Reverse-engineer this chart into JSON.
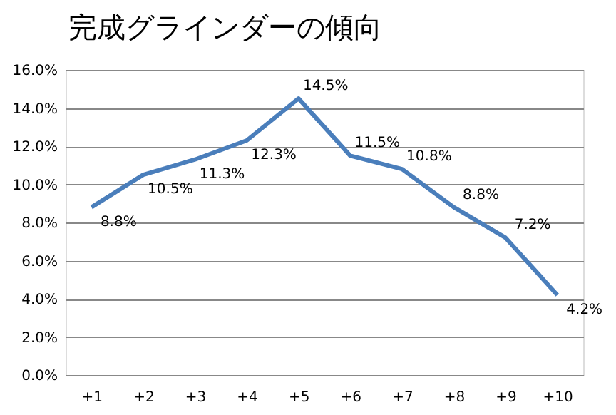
{
  "chart_data": {
    "type": "line",
    "title": "完成グラインダーの傾向",
    "categories": [
      "+1",
      "+2",
      "+3",
      "+4",
      "+5",
      "+6",
      "+7",
      "+8",
      "+9",
      "+10"
    ],
    "series": [
      {
        "color": "#4a7ebb",
        "values": [
          8.8,
          10.5,
          11.3,
          12.3,
          14.5,
          11.5,
          10.8,
          8.8,
          7.2,
          4.2
        ],
        "value_labels": [
          "8.8%",
          "10.5%",
          "11.3%",
          "12.3%",
          "14.5%",
          "11.5%",
          "10.8%",
          "8.8%",
          "7.2%",
          "4.2%"
        ]
      }
    ],
    "ylim": [
      0,
      16
    ],
    "yticks": [
      {
        "value": 0,
        "label": "0.0%"
      },
      {
        "value": 2,
        "label": "2.0%"
      },
      {
        "value": 4,
        "label": "4.0%"
      },
      {
        "value": 6,
        "label": "6.0%"
      },
      {
        "value": 8,
        "label": "8.0%"
      },
      {
        "value": 10,
        "label": "10.0%"
      },
      {
        "value": 12,
        "label": "12.0%"
      },
      {
        "value": 14,
        "label": "14.0%"
      },
      {
        "value": 16,
        "label": "16.0%"
      }
    ],
    "grid": "y"
  }
}
